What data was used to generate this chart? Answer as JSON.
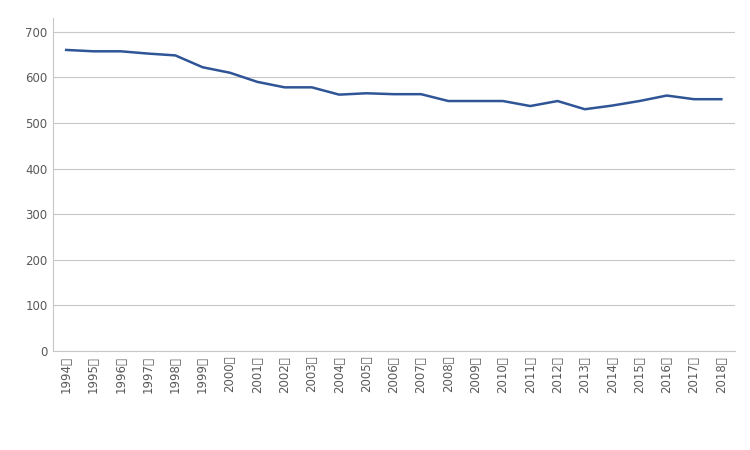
{
  "years": [
    "1994年",
    "1995年",
    "1996年",
    "1997年",
    "1998年",
    "1999年",
    "2000年",
    "2001年",
    "2002年",
    "2003年",
    "2004年",
    "2005年",
    "2006年",
    "2007年",
    "2008年",
    "2009年",
    "2010年",
    "2011年",
    "2012年",
    "2013年",
    "2014年",
    "2015年",
    "2016年",
    "2017年",
    "2018年"
  ],
  "values": [
    660,
    657,
    657,
    652,
    648,
    622,
    610,
    590,
    578,
    578,
    562,
    565,
    563,
    563,
    548,
    548,
    548,
    537,
    548,
    530,
    538,
    548,
    560,
    552,
    552
  ],
  "line_color": "#2f5597",
  "line_width": 1.8,
  "background_color": "#ffffff",
  "grid_color": "#c8c8c8",
  "yticks": [
    0,
    100,
    200,
    300,
    400,
    500,
    600,
    700
  ],
  "ylim": [
    0,
    730
  ],
  "tick_color": "#595959",
  "tick_fontsize": 8.5,
  "ylabel_pad": 5
}
